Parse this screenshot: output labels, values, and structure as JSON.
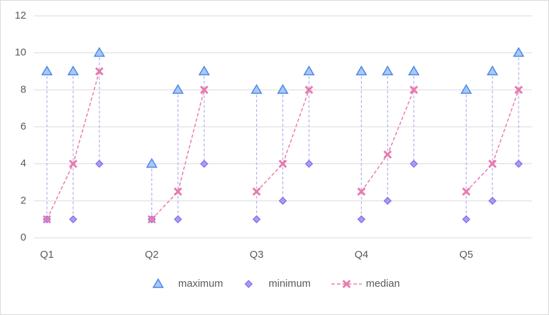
{
  "chart_data": {
    "type": "high-low",
    "categories": [
      "Q1",
      null,
      null,
      null,
      "Q2",
      null,
      null,
      null,
      "Q3",
      null,
      null,
      null,
      "Q4",
      null,
      null,
      null,
      "Q5",
      null,
      null
    ],
    "series": [
      {
        "name": "maximum",
        "color": "#4a86e8",
        "marker": "triangle",
        "line": false,
        "values": [
          9,
          9,
          10,
          null,
          4,
          8,
          9,
          null,
          8,
          8,
          9,
          null,
          9,
          9,
          9,
          null,
          8,
          9,
          10
        ]
      },
      {
        "name": "minimum",
        "color": "#7b68ee",
        "marker": "diamond",
        "line": false,
        "values": [
          1,
          1,
          4,
          null,
          1,
          1,
          4,
          null,
          1,
          2,
          4,
          null,
          1,
          2,
          4,
          null,
          1,
          2,
          4
        ]
      },
      {
        "name": "median",
        "color": "#e87aaf",
        "marker": "x",
        "line": true,
        "values": [
          1,
          4,
          9,
          null,
          1,
          2.5,
          8,
          null,
          2.5,
          4,
          8,
          null,
          2.5,
          4.5,
          8,
          null,
          2.5,
          4,
          8
        ]
      }
    ],
    "ylim": [
      0,
      12
    ],
    "yticks": [
      0,
      2,
      4,
      6,
      8,
      10,
      12
    ],
    "grid": true,
    "high_low_lines": true,
    "legend": "bottom"
  }
}
